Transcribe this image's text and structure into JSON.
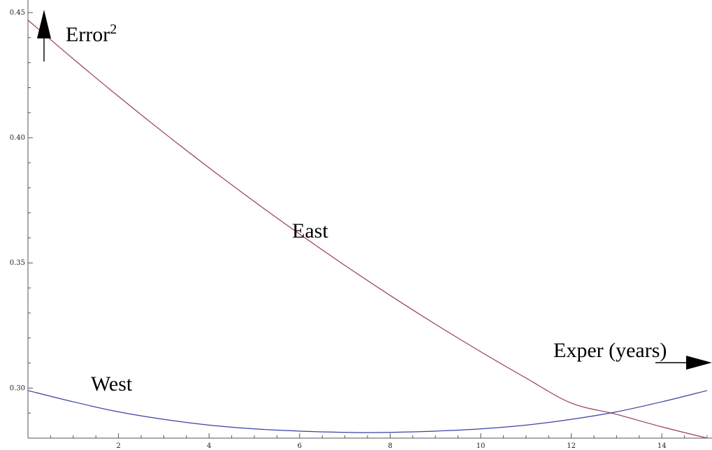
{
  "chart_data": {
    "type": "line",
    "xlim": [
      0,
      15
    ],
    "ylim": [
      0.28,
      0.45
    ],
    "x_ticks_major": [
      2,
      4,
      6,
      8,
      10,
      12,
      14
    ],
    "x_tick_labels": [
      "2",
      "4",
      "6",
      "8",
      "10",
      "12",
      "14"
    ],
    "y_ticks_major": [
      0.3,
      0.35,
      0.4,
      0.45
    ],
    "y_tick_labels": [
      "0.30",
      "0.35",
      "0.40",
      "0.45"
    ],
    "grid": false,
    "series": [
      {
        "name": "East",
        "color": "#9b3a6a",
        "x": [
          0,
          1,
          2,
          3,
          4,
          5,
          6,
          7,
          8,
          9,
          10,
          11,
          12,
          13,
          14,
          15
        ],
        "y": [
          0.447,
          0.4315,
          0.4165,
          0.402,
          0.388,
          0.3745,
          0.3615,
          0.349,
          0.337,
          0.3255,
          0.3145,
          0.304,
          0.294,
          0.2895,
          0.2845,
          0.28
        ]
      },
      {
        "name": "West",
        "color": "#3b3fa6",
        "x": [
          0,
          1,
          2,
          3,
          4,
          5,
          6,
          7,
          7.5,
          8,
          9,
          10,
          11,
          12,
          13,
          14,
          15
        ],
        "y": [
          0.299,
          0.2945,
          0.2905,
          0.2875,
          0.2852,
          0.2837,
          0.2828,
          0.2823,
          0.2822,
          0.2823,
          0.2828,
          0.2837,
          0.2852,
          0.2875,
          0.2905,
          0.2945,
          0.299
        ]
      }
    ],
    "annotations": {
      "ylabel_main": "Error",
      "ylabel_sup": "2",
      "xlabel": "Exper (years)",
      "east_label": "East",
      "west_label": "West"
    }
  }
}
